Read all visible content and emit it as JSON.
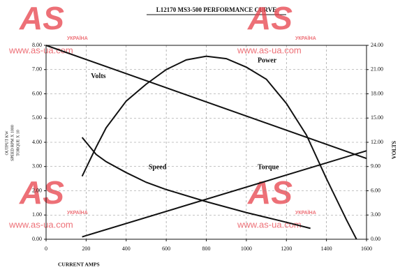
{
  "chart_data": {
    "type": "line",
    "title": "L12170 MS3-500 PERFORMANCE CURVE",
    "xlabel": "CURRENT AMPS",
    "ylabel": [
      "OUTPUT KW",
      "SPEED RPM X 1000",
      "TORQUE X 10"
    ],
    "y2label": "VOLTS",
    "xlim": [
      0,
      1600
    ],
    "xticks": [
      0,
      200,
      400,
      600,
      800,
      1000,
      1200,
      1400,
      1600
    ],
    "ylim": [
      0,
      8
    ],
    "yticks": [
      {
        "value": 0,
        "label": "0.00"
      },
      {
        "value": 1,
        "label": "1.00"
      },
      {
        "value": 2,
        "label": "2.00"
      },
      {
        "value": 3,
        "label": "3.00"
      },
      {
        "value": 4,
        "label": "4.00"
      },
      {
        "value": 5,
        "label": "5.00"
      },
      {
        "value": 6,
        "label": "6.00"
      },
      {
        "value": 7,
        "label": "7.00"
      },
      {
        "value": 8,
        "label": "8.00"
      }
    ],
    "y2lim": [
      0,
      24
    ],
    "y2ticks": [
      {
        "value": 0,
        "label": "0.00"
      },
      {
        "value": 3,
        "label": "3.00"
      },
      {
        "value": 6,
        "label": "6.00"
      },
      {
        "value": 9,
        "label": "9.00"
      },
      {
        "value": 12,
        "label": "12.00"
      },
      {
        "value": 15,
        "label": "15.00"
      },
      {
        "value": 18,
        "label": "18.00"
      },
      {
        "value": 21,
        "label": "21.00"
      },
      {
        "value": 24,
        "label": "24.00"
      }
    ],
    "grid": true,
    "series": [
      {
        "name": "Volts",
        "color": "#111111",
        "axis": "y2",
        "x": [
          0,
          1600
        ],
        "values": [
          24,
          10
        ]
      },
      {
        "name": "Power",
        "color": "#111111",
        "x": [
          180,
          250,
          300,
          400,
          500,
          600,
          700,
          800,
          900,
          1000,
          1100,
          1200,
          1300,
          1400,
          1500,
          1550
        ],
        "values": [
          2.6,
          3.8,
          4.6,
          5.7,
          6.4,
          7.0,
          7.4,
          7.55,
          7.45,
          7.1,
          6.6,
          5.6,
          4.3,
          2.5,
          0.8,
          0
        ]
      },
      {
        "name": "Speed",
        "color": "#111111",
        "x": [
          180,
          250,
          300,
          400,
          500,
          600,
          800,
          1000,
          1200,
          1320
        ],
        "values": [
          4.2,
          3.5,
          3.2,
          2.75,
          2.35,
          2.05,
          1.55,
          1.1,
          0.7,
          0.45
        ]
      },
      {
        "name": "Torque",
        "color": "#111111",
        "x": [
          180,
          1600
        ],
        "values": [
          0.1,
          3.65
        ]
      }
    ]
  },
  "watermark": {
    "brand": "AS",
    "country": "УКРАЇНА",
    "url": "www.as-ua.com"
  }
}
